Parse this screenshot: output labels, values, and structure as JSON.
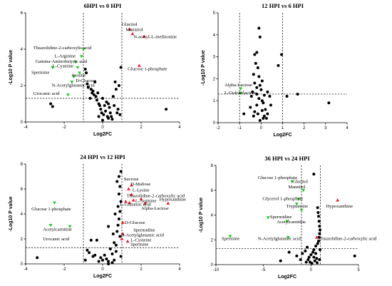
{
  "chart_data": [
    {
      "type": "scatter",
      "title": "6HPI vs 0 HPI",
      "xlabel": "Log2FC",
      "ylabel": "-Log10 P value",
      "xlim": [
        -4,
        4
      ],
      "ylim": [
        0,
        6
      ],
      "xticks": [
        -4,
        -2,
        0,
        2,
        4
      ],
      "yticks": [
        0,
        2,
        4,
        6
      ],
      "thresholds": {
        "x": [
          -1,
          1
        ],
        "y": 1.3
      },
      "background": [
        [
          -2.7,
          1.0
        ],
        [
          -2.6,
          0.85
        ],
        [
          -0.9,
          2.9
        ],
        [
          -0.85,
          2.7
        ],
        [
          -0.8,
          2.1
        ],
        [
          -0.75,
          1.9
        ],
        [
          -0.6,
          1.8
        ],
        [
          -0.55,
          1.6
        ],
        [
          -0.5,
          1.7
        ],
        [
          -0.45,
          1.5
        ],
        [
          -0.35,
          1.4
        ],
        [
          -0.3,
          1.2
        ],
        [
          -0.25,
          1.6
        ],
        [
          -0.2,
          1.0
        ],
        [
          -0.15,
          0.9
        ],
        [
          -0.1,
          0.7
        ],
        [
          -0.05,
          0.5
        ],
        [
          0.0,
          1.3
        ],
        [
          0.05,
          0.4
        ],
        [
          0.1,
          0.9
        ],
        [
          0.15,
          0.6
        ],
        [
          0.2,
          1.1
        ],
        [
          0.25,
          0.3
        ],
        [
          0.3,
          0.2
        ],
        [
          0.35,
          0.8
        ],
        [
          0.4,
          0.5
        ],
        [
          0.45,
          0.3
        ],
        [
          0.5,
          0.15
        ],
        [
          0.55,
          1.4
        ],
        [
          0.6,
          0.9
        ],
        [
          0.65,
          2.2
        ],
        [
          0.7,
          1.8
        ],
        [
          0.75,
          0.5
        ],
        [
          0.8,
          0.7
        ],
        [
          0.85,
          2.0
        ],
        [
          0.9,
          0.4
        ],
        [
          0.95,
          3.0
        ],
        [
          -0.4,
          2.2
        ],
        [
          -0.65,
          1.3
        ],
        [
          0.0,
          0.1
        ],
        [
          3.3,
          0.7
        ],
        [
          0.3,
          1.0
        ],
        [
          -0.2,
          0.3
        ]
      ],
      "up": [
        [
          1.4,
          5.1
        ],
        [
          1.55,
          4.85
        ],
        [
          2.15,
          4.7
        ],
        [
          1.9,
          3.1
        ]
      ],
      "down": [
        [
          -1.0,
          4.0
        ],
        [
          -1.1,
          3.6
        ],
        [
          -1.4,
          3.3
        ],
        [
          -1.3,
          3.0
        ],
        [
          -2.6,
          3.0
        ],
        [
          -1.2,
          2.7
        ],
        [
          -1.5,
          2.5
        ],
        [
          -1.6,
          2.2
        ],
        [
          -1.8,
          1.5
        ]
      ],
      "labels": [
        {
          "text": "Glucitol",
          "x": 1.0,
          "y": 5.3
        },
        {
          "text": "Mannitol",
          "x": 1.2,
          "y": 5.0
        },
        {
          "text": "N-acetyl-L-methionine",
          "x": 1.6,
          "y": 4.6
        },
        {
          "text": "Thiazolidine-2-carboxylic acid",
          "x": -3.6,
          "y": 4.0
        },
        {
          "text": "L-Arginine",
          "x": -2.5,
          "y": 3.55
        },
        {
          "text": "Gamma-Aminobutyric acid",
          "x": -3.5,
          "y": 3.25
        },
        {
          "text": "L-Cysteine",
          "x": -2.6,
          "y": 3.0
        },
        {
          "text": "Spermine",
          "x": -3.7,
          "y": 2.65
        },
        {
          "text": "Inosine",
          "x": -1.6,
          "y": 2.5
        },
        {
          "text": "D-Glucose",
          "x": -1.4,
          "y": 2.2
        },
        {
          "text": "N-Acetylglutamic acid",
          "x": -2.65,
          "y": 1.95
        },
        {
          "text": "Glucose 1-phosphate",
          "x": 1.3,
          "y": 2.85
        },
        {
          "text": "Urocanic acid",
          "x": -3.6,
          "y": 1.5
        }
      ]
    },
    {
      "type": "scatter",
      "title": "12 HPI vs 6 HPI",
      "xlabel": "Log2FC",
      "ylabel": "-Log10 P value",
      "xlim": [
        -2,
        4
      ],
      "ylim": [
        0,
        5
      ],
      "xticks": [
        -2,
        -1,
        0,
        1,
        2,
        3,
        4
      ],
      "yticks": [
        0,
        1,
        2,
        3,
        4,
        5
      ],
      "thresholds": {
        "x": [
          -1,
          1
        ],
        "y": 1.3
      },
      "background": [
        [
          -0.1,
          4.3
        ],
        [
          -0.05,
          3.9
        ],
        [
          -0.2,
          3.2
        ],
        [
          -0.25,
          2.7
        ],
        [
          -0.3,
          3.1
        ],
        [
          -0.15,
          2.5
        ],
        [
          -0.35,
          2.2
        ],
        [
          -0.1,
          2.1
        ],
        [
          0.05,
          1.9
        ],
        [
          -0.3,
          1.8
        ],
        [
          -0.2,
          1.6
        ],
        [
          -0.05,
          1.7
        ],
        [
          0.0,
          1.5
        ],
        [
          -0.4,
          1.4
        ],
        [
          -0.45,
          1.2
        ],
        [
          -0.1,
          1.1
        ],
        [
          0.05,
          1.0
        ],
        [
          0.1,
          0.9
        ],
        [
          -0.2,
          0.8
        ],
        [
          0.2,
          0.6
        ],
        [
          -0.3,
          0.5
        ],
        [
          0.15,
          0.3
        ],
        [
          0.3,
          0.4
        ],
        [
          0.25,
          0.2
        ],
        [
          -0.5,
          0.7
        ],
        [
          0.4,
          1.2
        ],
        [
          0.3,
          1.4
        ],
        [
          0.45,
          0.8
        ],
        [
          0.1,
          0.2
        ],
        [
          -0.35,
          0.3
        ],
        [
          0.05,
          0.55
        ],
        [
          0.8,
          2.6
        ],
        [
          0.95,
          3.1
        ],
        [
          1.2,
          1.2
        ],
        [
          1.7,
          1.3
        ],
        [
          3.15,
          0.9
        ],
        [
          -0.05,
          0.1
        ],
        [
          -0.15,
          0.4
        ],
        [
          -0.8,
          0.4
        ],
        [
          -0.2,
          1.3
        ],
        [
          0.15,
          1.25
        ]
      ],
      "up": [],
      "down": [
        [
          -0.95,
          1.55
        ],
        [
          -0.95,
          1.35
        ]
      ],
      "labels": [
        {
          "text": "Alpha-Lactose",
          "x": -1.7,
          "y": 1.65
        },
        {
          "text": "L-Gulonolactone",
          "x": -1.7,
          "y": 1.3
        }
      ]
    },
    {
      "type": "scatter",
      "title": "24 HPI vs 12 HPI",
      "xlabel": "Log2FC",
      "ylabel": "-Log10 P value",
      "xlim": [
        -4,
        4
      ],
      "ylim": [
        0,
        8
      ],
      "xticks": [
        -4,
        -2,
        0,
        2,
        4
      ],
      "yticks": [
        0,
        2,
        4,
        6,
        8
      ],
      "thresholds": {
        "x": [
          -1,
          1
        ],
        "y": 1.3
      },
      "background": [
        [
          -3.4,
          0.5
        ],
        [
          -0.8,
          1.1
        ],
        [
          -0.7,
          0.9
        ],
        [
          -0.5,
          0.6
        ],
        [
          -0.3,
          1.9
        ],
        [
          -0.2,
          0.2
        ],
        [
          -0.1,
          0.5
        ],
        [
          0.0,
          0.3
        ],
        [
          0.1,
          0.7
        ],
        [
          0.2,
          0.4
        ],
        [
          0.3,
          0.2
        ],
        [
          0.4,
          1.2
        ],
        [
          0.5,
          0.8
        ],
        [
          0.6,
          0.3
        ],
        [
          0.7,
          1.5
        ],
        [
          0.75,
          2.6
        ],
        [
          0.8,
          3.1
        ],
        [
          0.85,
          3.6
        ],
        [
          0.9,
          4.2
        ],
        [
          0.95,
          5.0
        ],
        [
          0.95,
          7.4
        ],
        [
          0.9,
          6.2
        ],
        [
          0.85,
          5.6
        ],
        [
          0.8,
          4.6
        ],
        [
          0.9,
          2.2
        ],
        [
          0.7,
          1.0
        ],
        [
          0.6,
          1.7
        ],
        [
          0.95,
          0.6
        ],
        [
          -0.6,
          1.9
        ],
        [
          -0.4,
          0.7
        ],
        [
          0.5,
          0.1
        ],
        [
          -0.9,
          0.3
        ],
        [
          0.3,
          3.0
        ],
        [
          0.55,
          2.4
        ],
        [
          0.65,
          4.0
        ],
        [
          0.85,
          7.0
        ],
        [
          0.75,
          6.6
        ],
        [
          0.3,
          0.0
        ]
      ],
      "up": [
        [
          1.5,
          6.3
        ],
        [
          1.35,
          6.0
        ],
        [
          1.5,
          5.55
        ],
        [
          1.2,
          5.0
        ],
        [
          1.6,
          5.1
        ],
        [
          2.0,
          5.2
        ],
        [
          2.2,
          4.85
        ],
        [
          1.4,
          4.9
        ],
        [
          3.4,
          4.85
        ],
        [
          1.05,
          3.3
        ],
        [
          1.05,
          2.4
        ],
        [
          1.0,
          2.0
        ],
        [
          1.3,
          1.8
        ]
      ],
      "down": [
        [
          -2.5,
          4.9
        ],
        [
          -1.7,
          3.0
        ],
        [
          -2.7,
          3.1
        ]
      ],
      "labels": [
        {
          "text": "Sucrose",
          "x": 1.1,
          "y": 6.7
        },
        {
          "text": "D-Maltose",
          "x": 1.45,
          "y": 6.3
        },
        {
          "text": "L-Lysine",
          "x": 1.55,
          "y": 5.8
        },
        {
          "text": "Thiazolidine-2-carboxylic acid",
          "x": 1.25,
          "y": 5.35
        },
        {
          "text": "L-Arginine",
          "x": 1.7,
          "y": 4.95
        },
        {
          "text": "L-Glutamic acid",
          "x": 0.9,
          "y": 4.65
        },
        {
          "text": "Hypoxanthine",
          "x": 2.95,
          "y": 5.05
        },
        {
          "text": "Alpha-Lactose",
          "x": 2.0,
          "y": 4.35
        },
        {
          "text": "Glucose 1-phosphate",
          "x": -3.7,
          "y": 4.3
        },
        {
          "text": "D-Glucose",
          "x": 1.15,
          "y": 3.2
        },
        {
          "text": "Spermidine",
          "x": 1.6,
          "y": 2.6
        },
        {
          "text": "N-Acetylglutamic acid",
          "x": 0.95,
          "y": 2.2
        },
        {
          "text": "L-Cysteine",
          "x": 1.45,
          "y": 1.8
        },
        {
          "text": "Spermine",
          "x": 1.45,
          "y": 1.45
        },
        {
          "text": "Acetylcarnitine",
          "x": -3.1,
          "y": 2.65
        },
        {
          "text": "Urocanic acid",
          "x": -3.1,
          "y": 1.9
        }
      ]
    },
    {
      "type": "scatter",
      "title": "36 HPI vs 24 HPI",
      "xlabel": "Log2FC",
      "ylabel": "-Log10 P value",
      "xlim": [
        -10,
        5
      ],
      "ylim": [
        0,
        8
      ],
      "xticks": [
        -10,
        -5,
        0,
        5
      ],
      "yticks": [
        0,
        2,
        4,
        6,
        8
      ],
      "thresholds": {
        "x": [
          -1,
          1
        ],
        "y": 1.3
      },
      "background": [
        [
          0.3,
          7.3
        ],
        [
          0.7,
          4.6
        ],
        [
          0.75,
          4.2
        ],
        [
          0.8,
          3.9
        ],
        [
          0.85,
          3.5
        ],
        [
          0.9,
          3.1
        ],
        [
          0.95,
          2.8
        ],
        [
          0.9,
          2.5
        ],
        [
          0.85,
          2.2
        ],
        [
          0.8,
          1.9
        ],
        [
          0.7,
          1.7
        ],
        [
          0.5,
          1.5
        ],
        [
          0.3,
          1.2
        ],
        [
          0.2,
          1.0
        ],
        [
          0.0,
          0.8
        ],
        [
          -0.2,
          0.6
        ],
        [
          -0.3,
          0.4
        ],
        [
          -0.5,
          0.2
        ],
        [
          0.1,
          0.1
        ],
        [
          0.4,
          0.3
        ],
        [
          0.6,
          0.5
        ],
        [
          0.65,
          0.15
        ],
        [
          -0.6,
          1.1
        ],
        [
          -0.9,
          0.9
        ],
        [
          -1.5,
          0.7
        ],
        [
          -2.3,
          1.0
        ],
        [
          -3.2,
          0.3
        ],
        [
          -1.1,
          0.4
        ],
        [
          0.3,
          0.6
        ],
        [
          -0.1,
          0.2
        ],
        [
          0.5,
          0.9
        ],
        [
          0.9,
          0.4
        ],
        [
          4.6,
          0.7
        ],
        [
          -0.4,
          1.4
        ],
        [
          0.95,
          1.2
        ]
      ],
      "up": [
        [
          2.8,
          5.2
        ],
        [
          0.6,
          2.2
        ]
      ],
      "down": [
        [
          -2.0,
          6.7
        ],
        [
          -0.8,
          6.0
        ],
        [
          -1.3,
          5.3
        ],
        [
          -1.5,
          4.9
        ],
        [
          -1.0,
          4.4
        ],
        [
          -4.5,
          3.8
        ],
        [
          -2.5,
          3.5
        ],
        [
          -8.5,
          2.3
        ],
        [
          -2.4,
          2.2
        ]
      ],
      "labels": [
        {
          "text": "Glucose 1-phosphate",
          "x": -5.6,
          "y": 6.9
        },
        {
          "text": "Glucitol",
          "x": -1.95,
          "y": 6.6
        },
        {
          "text": "Mannitol",
          "x": -2.4,
          "y": 6.15
        },
        {
          "text": "Glycerol 1-phosphate",
          "x": -5.1,
          "y": 5.2
        },
        {
          "text": "Tryptamine",
          "x": -2.6,
          "y": 4.6
        },
        {
          "text": "Hypoxanthine",
          "x": 1.6,
          "y": 4.6
        },
        {
          "text": "Spermidine",
          "x": -4.3,
          "y": 3.75
        },
        {
          "text": "Acetylcarnitine",
          "x": -3.6,
          "y": 3.35
        },
        {
          "text": "Spermine",
          "x": -9.4,
          "y": 2.0
        },
        {
          "text": "N-Acetylglutamic acid",
          "x": -5.6,
          "y": 2.0
        },
        {
          "text": "Thiazolidine-2-carboxylic acid",
          "x": 0.8,
          "y": 2.0
        }
      ]
    }
  ]
}
